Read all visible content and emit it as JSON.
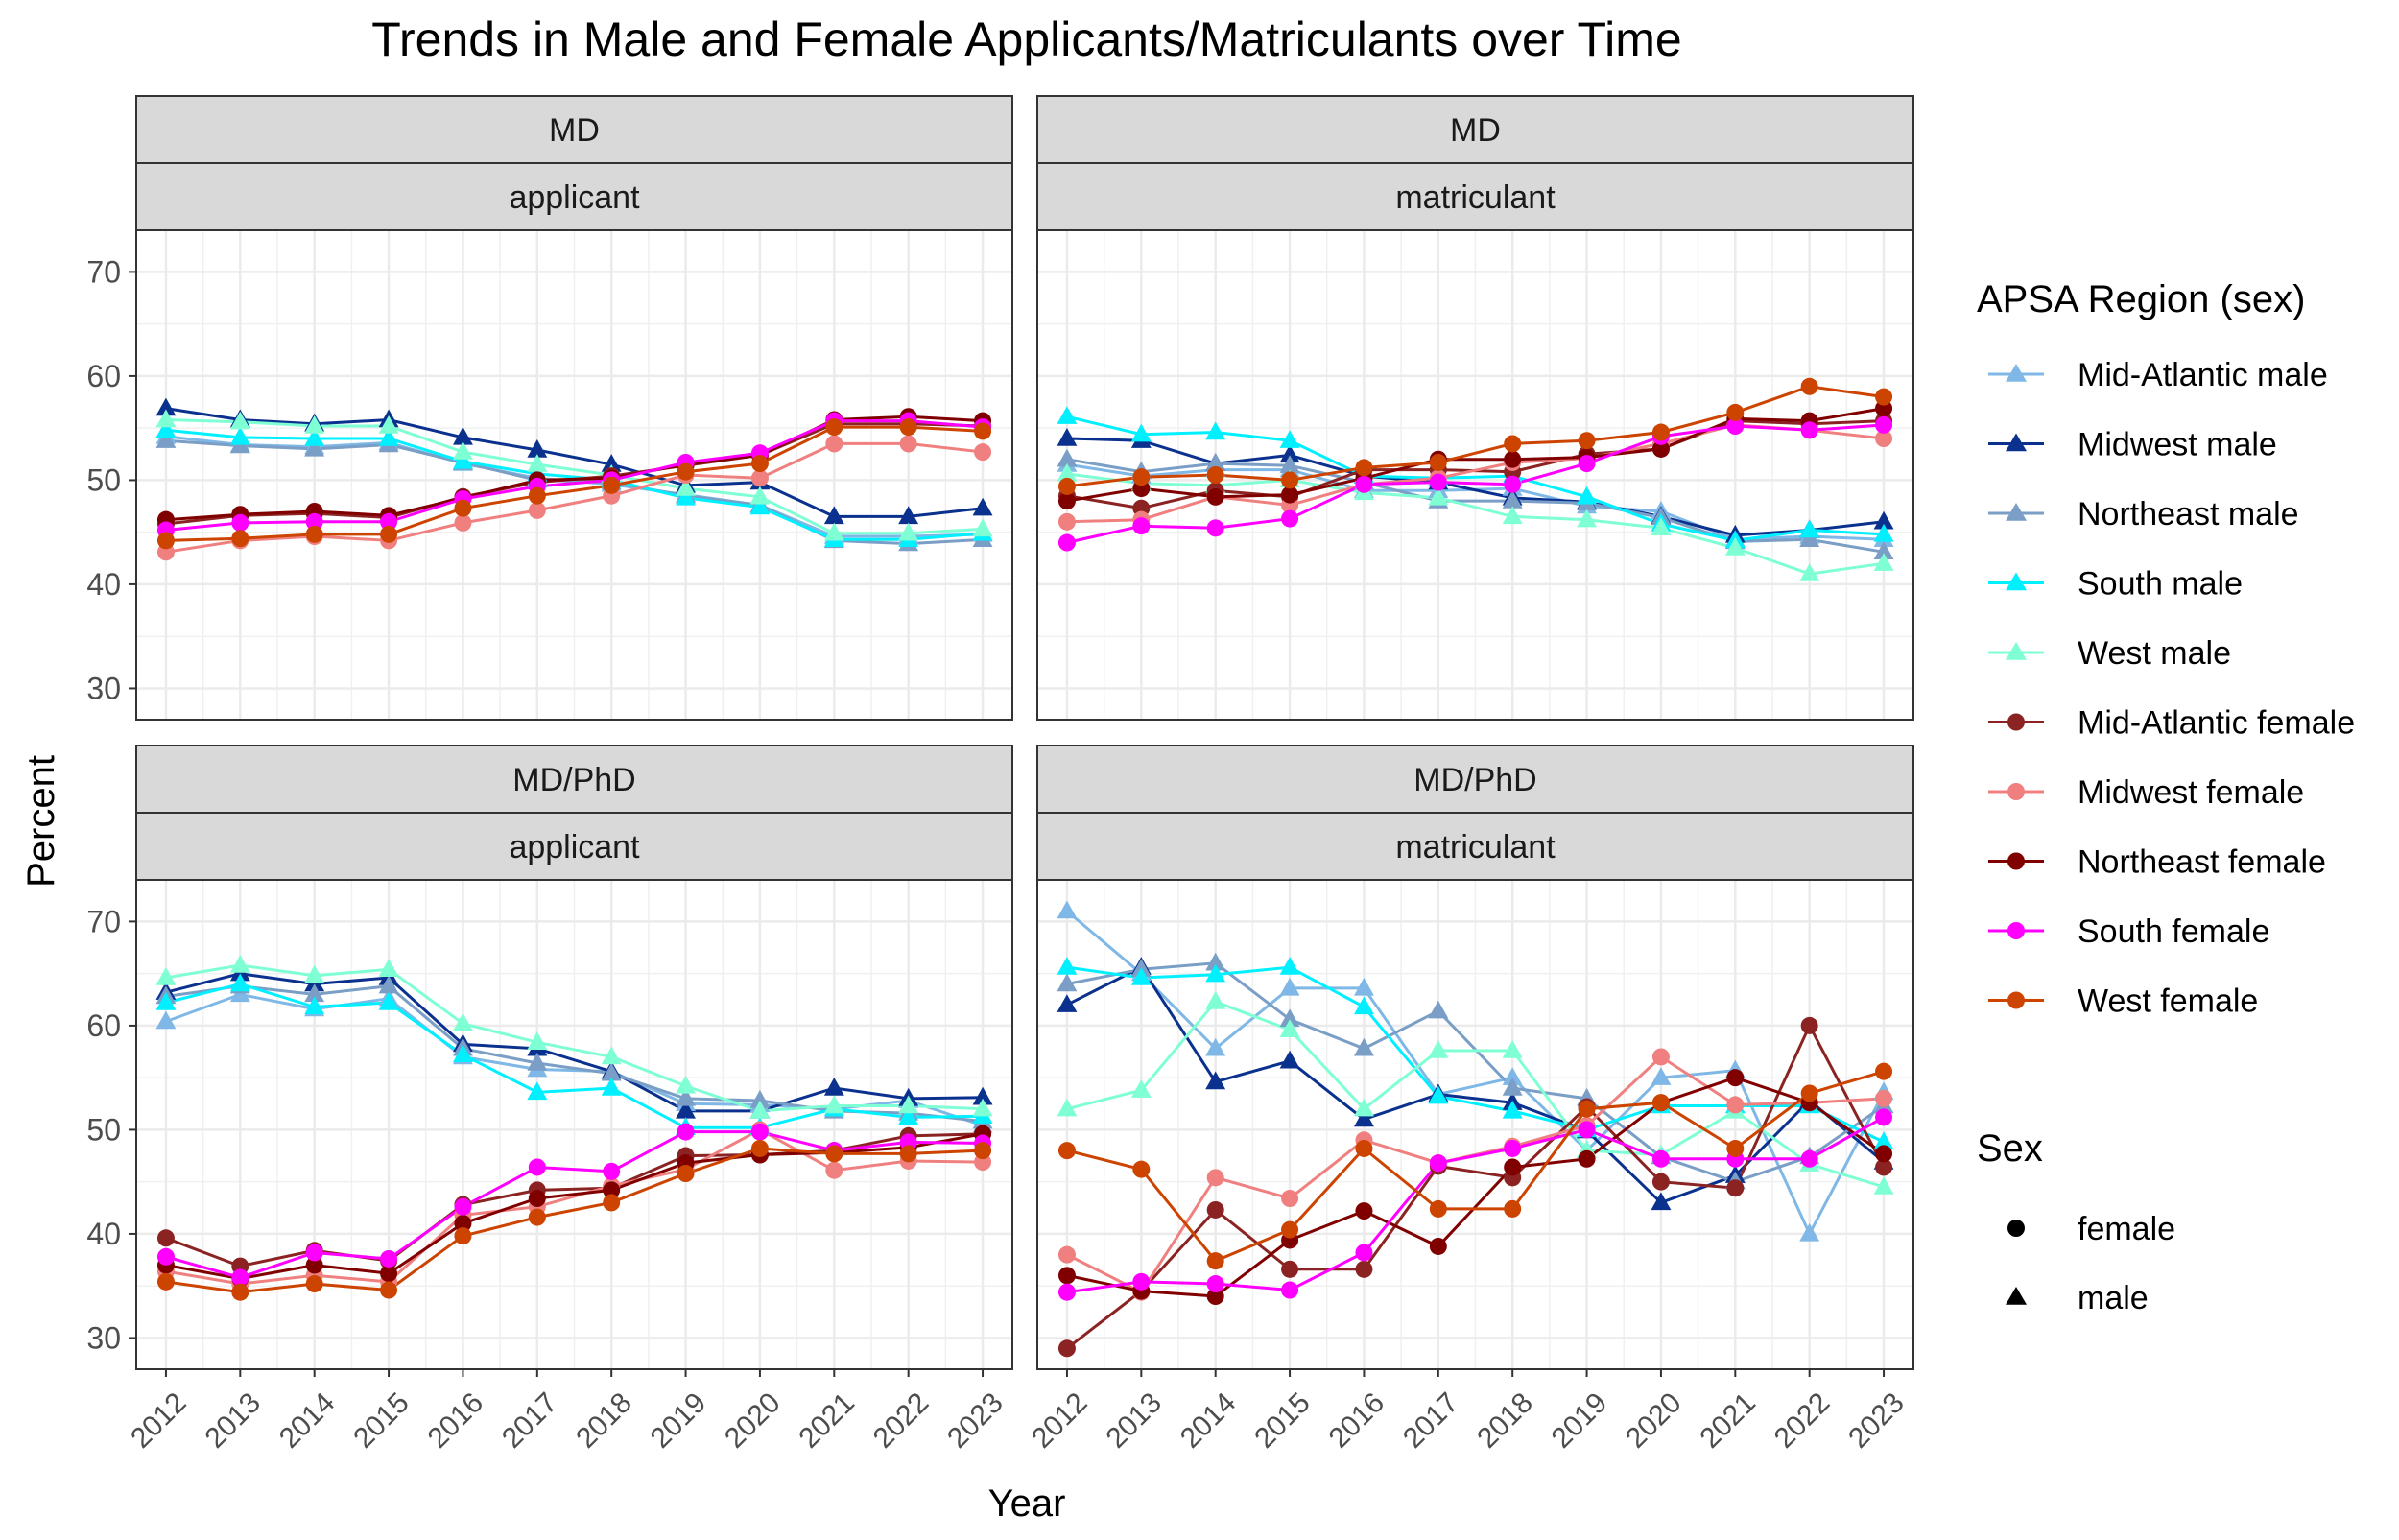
{
  "chart_data": {
    "type": "line",
    "title": "Trends in Male and Female Applicants/Matriculants over Time",
    "xlabel": "Year",
    "ylabel": "Percent",
    "ylim": [
      27,
      74
    ],
    "yticks": [
      30,
      40,
      50,
      60,
      70
    ],
    "grid": true,
    "legend_placement": "right",
    "x": [
      2012,
      2013,
      2014,
      2015,
      2016,
      2017,
      2018,
      2019,
      2020,
      2021,
      2022,
      2023
    ],
    "legend": {
      "title": "APSA Region (sex)",
      "entries": [
        {
          "name": "Mid-Atlantic male",
          "color": "#7FB8E6"
        },
        {
          "name": "Midwest male",
          "color": "#0B318F"
        },
        {
          "name": "Northeast male",
          "color": "#7A9EC6"
        },
        {
          "name": "South male",
          "color": "#00F0FF"
        },
        {
          "name": "West male",
          "color": "#7FFFD4"
        },
        {
          "name": "Mid-Atlantic female",
          "color": "#8B2323"
        },
        {
          "name": "Midwest female",
          "color": "#F08080"
        },
        {
          "name": "Northeast female",
          "color": "#800000"
        },
        {
          "name": "South female",
          "color": "#FF00FF"
        },
        {
          "name": "West female",
          "color": "#CC4400"
        }
      ]
    },
    "shape_legend": {
      "title": "Sex",
      "entries": [
        {
          "name": "female",
          "shape": "circle"
        },
        {
          "name": "male",
          "shape": "triangle"
        }
      ]
    },
    "panels": [
      {
        "strip_top": "MD",
        "strip_bottom": "applicant",
        "series": [
          {
            "name": "Mid-Atlantic male",
            "values": [
              54.2,
              53.4,
              53.2,
              53.6,
              51.6,
              50.2,
              49.6,
              48.6,
              47.6,
              44.6,
              44.6,
              44.8
            ]
          },
          {
            "name": "Midwest male",
            "values": [
              56.9,
              55.8,
              55.4,
              55.8,
              54.1,
              52.9,
              51.5,
              49.5,
              49.8,
              46.5,
              46.5,
              47.3
            ]
          },
          {
            "name": "Northeast male",
            "values": [
              53.8,
              53.3,
              53.0,
              53.4,
              51.7,
              50.0,
              49.8,
              48.5,
              47.6,
              44.2,
              43.9,
              44.3
            ]
          },
          {
            "name": "South male",
            "values": [
              54.8,
              54.1,
              54.0,
              54.0,
              51.8,
              50.6,
              50.0,
              48.3,
              47.4,
              44.3,
              44.3,
              44.9
            ]
          },
          {
            "name": "West male",
            "values": [
              55.8,
              55.6,
              55.2,
              55.2,
              52.7,
              51.5,
              50.5,
              49.2,
              48.4,
              44.9,
              44.9,
              45.3
            ]
          },
          {
            "name": "Mid-Atlantic female",
            "values": [
              45.8,
              46.6,
              46.8,
              46.4,
              48.4,
              49.8,
              50.4,
              51.4,
              52.4,
              55.4,
              55.4,
              55.2
            ]
          },
          {
            "name": "Midwest female",
            "values": [
              43.1,
              44.2,
              44.6,
              44.2,
              45.9,
              47.1,
              48.5,
              50.5,
              50.2,
              53.5,
              53.5,
              52.7
            ]
          },
          {
            "name": "Northeast female",
            "values": [
              46.2,
              46.7,
              47.0,
              46.6,
              48.3,
              50.0,
              50.2,
              51.5,
              52.4,
              55.8,
              56.1,
              55.7
            ]
          },
          {
            "name": "South female",
            "values": [
              45.2,
              45.9,
              46.0,
              46.0,
              48.2,
              49.4,
              50.0,
              51.7,
              52.6,
              55.7,
              55.7,
              55.1
            ]
          },
          {
            "name": "West female",
            "values": [
              44.2,
              44.4,
              44.8,
              44.8,
              47.3,
              48.5,
              49.5,
              50.8,
              51.6,
              55.1,
              55.1,
              54.7
            ]
          }
        ]
      },
      {
        "strip_top": "MD",
        "strip_bottom": "matriculant",
        "series": [
          {
            "name": "Mid-Atlantic male",
            "values": [
              51.5,
              50.4,
              51.0,
              51.0,
              49.0,
              49.0,
              49.2,
              47.5,
              47.0,
              44.3,
              44.6,
              44.3
            ]
          },
          {
            "name": "Midwest male",
            "values": [
              54.0,
              53.8,
              51.6,
              52.4,
              50.4,
              49.8,
              48.3,
              47.9,
              46.5,
              44.7,
              45.2,
              46.0
            ]
          },
          {
            "name": "Northeast male",
            "values": [
              52.0,
              50.8,
              51.6,
              51.4,
              49.8,
              48.0,
              48.0,
              47.8,
              46.4,
              44.1,
              44.3,
              43.1
            ]
          },
          {
            "name": "South male",
            "values": [
              56.1,
              54.4,
              54.6,
              53.8,
              50.4,
              50.2,
              50.4,
              48.4,
              45.8,
              44.2,
              45.2,
              44.8
            ]
          },
          {
            "name": "West male",
            "values": [
              50.6,
              49.7,
              49.5,
              50.0,
              48.8,
              48.3,
              46.5,
              46.2,
              45.4,
              43.5,
              41.0,
              42.0
            ]
          },
          {
            "name": "Mid-Atlantic female",
            "values": [
              48.5,
              47.3,
              49.0,
              48.4,
              51.0,
              51.0,
              50.8,
              52.5,
              53.0,
              55.7,
              55.4,
              55.7
            ]
          },
          {
            "name": "Midwest female",
            "values": [
              46.0,
              46.2,
              48.4,
              47.6,
              49.6,
              50.2,
              51.7,
              52.1,
              53.5,
              55.3,
              54.8,
              54.0
            ]
          },
          {
            "name": "Northeast female",
            "values": [
              48.0,
              49.2,
              48.4,
              48.6,
              50.2,
              52.0,
              52.0,
              52.2,
              53.0,
              55.9,
              55.7,
              56.9
            ]
          },
          {
            "name": "South female",
            "values": [
              44.0,
              45.6,
              45.4,
              46.3,
              49.6,
              49.8,
              49.6,
              51.6,
              54.2,
              55.2,
              54.8,
              55.3
            ]
          },
          {
            "name": "West female",
            "values": [
              49.4,
              50.3,
              50.5,
              50.0,
              51.2,
              51.7,
              53.5,
              53.8,
              54.6,
              56.5,
              59.0,
              58.0
            ]
          }
        ]
      },
      {
        "strip_top": "MD/PhD",
        "strip_bottom": "applicant",
        "series": [
          {
            "name": "Mid-Atlantic male",
            "values": [
              60.4,
              63.0,
              61.6,
              62.6,
              57.0,
              55.8,
              55.6,
              52.5,
              52.4,
              52.0,
              52.8,
              50.4
            ]
          },
          {
            "name": "Midwest male",
            "values": [
              63.2,
              65.0,
              64.0,
              64.6,
              58.2,
              57.8,
              55.6,
              51.8,
              51.8,
              54.0,
              53.0,
              53.1
            ]
          },
          {
            "name": "Northeast male",
            "values": [
              62.8,
              63.8,
              63.0,
              63.8,
              57.8,
              56.4,
              55.4,
              53.0,
              52.8,
              51.8,
              51.6,
              50.8
            ]
          },
          {
            "name": "South male",
            "values": [
              62.2,
              64.0,
              61.8,
              62.2,
              57.2,
              53.6,
              54.0,
              50.2,
              50.2,
              52.0,
              51.2,
              51.3
            ]
          },
          {
            "name": "West male",
            "values": [
              64.6,
              65.8,
              64.8,
              65.4,
              60.2,
              58.4,
              57.0,
              54.2,
              51.8,
              52.3,
              52.3,
              52.0
            ]
          },
          {
            "name": "Mid-Atlantic female",
            "values": [
              39.6,
              36.9,
              38.4,
              37.4,
              42.8,
              44.2,
              44.4,
              47.5,
              47.6,
              48.0,
              49.4,
              49.6
            ]
          },
          {
            "name": "Midwest female",
            "values": [
              36.4,
              35.2,
              36.0,
              35.4,
              41.8,
              42.6,
              44.6,
              46.2,
              50.0,
              46.1,
              47.0,
              46.9
            ]
          },
          {
            "name": "Northeast female",
            "values": [
              37.0,
              35.7,
              37.0,
              36.2,
              41.0,
              43.4,
              44.2,
              46.8,
              47.6,
              47.8,
              48.3,
              49.6
            ]
          },
          {
            "name": "South female",
            "values": [
              37.8,
              35.8,
              38.2,
              37.6,
              42.6,
              46.4,
              46.0,
              49.8,
              49.8,
              48.0,
              48.8,
              48.7
            ]
          },
          {
            "name": "West female",
            "values": [
              35.4,
              34.4,
              35.2,
              34.6,
              39.8,
              41.6,
              43.0,
              45.8,
              48.2,
              47.7,
              47.7,
              48.0
            ]
          }
        ]
      },
      {
        "strip_top": "MD/PhD",
        "strip_bottom": "matriculant",
        "series": [
          {
            "name": "Mid-Atlantic male",
            "values": [
              71.0,
              65.0,
              57.8,
              63.6,
              63.6,
              53.4,
              55.0,
              48.0,
              55.0,
              55.7,
              40.0,
              53.6
            ]
          },
          {
            "name": "Midwest male",
            "values": [
              62.0,
              65.6,
              54.6,
              56.6,
              51.0,
              53.4,
              52.6,
              49.9,
              43.0,
              45.6,
              52.8,
              46.9
            ]
          },
          {
            "name": "Northeast male",
            "values": [
              64.0,
              65.4,
              66.0,
              60.6,
              57.8,
              61.4,
              54.0,
              53.0,
              47.4,
              45.0,
              47.4,
              52.3
            ]
          },
          {
            "name": "South male",
            "values": [
              65.6,
              64.6,
              64.9,
              65.6,
              61.8,
              53.2,
              51.8,
              50.0,
              52.3,
              52.3,
              52.3,
              48.8
            ]
          },
          {
            "name": "West male",
            "values": [
              52.0,
              53.8,
              62.3,
              59.6,
              52.0,
              57.6,
              57.6,
              48.0,
              47.6,
              51.8,
              46.7,
              44.5
            ]
          },
          {
            "name": "Mid-Atlantic female",
            "values": [
              29.0,
              34.5,
              42.3,
              36.6,
              36.6,
              46.5,
              45.4,
              52.2,
              45.0,
              44.4,
              60.0,
              46.4
            ]
          },
          {
            "name": "Midwest female",
            "values": [
              38.0,
              34.4,
              45.4,
              43.4,
              49.0,
              46.8,
              48.4,
              50.4,
              57.0,
              52.4,
              52.6,
              53.0
            ]
          },
          {
            "name": "Northeast female",
            "values": [
              36.0,
              34.5,
              34.0,
              39.4,
              42.2,
              38.8,
              46.4,
              47.2,
              52.6,
              55.0,
              52.6,
              47.7
            ]
          },
          {
            "name": "South female",
            "values": [
              34.4,
              35.4,
              35.2,
              34.6,
              38.2,
              46.8,
              48.2,
              50.0,
              47.2,
              47.2,
              47.2,
              51.2
            ]
          },
          {
            "name": "West female",
            "values": [
              48.0,
              46.2,
              37.4,
              40.4,
              48.2,
              42.4,
              42.4,
              52.0,
              52.6,
              48.2,
              53.5,
              55.6
            ]
          }
        ]
      }
    ]
  }
}
